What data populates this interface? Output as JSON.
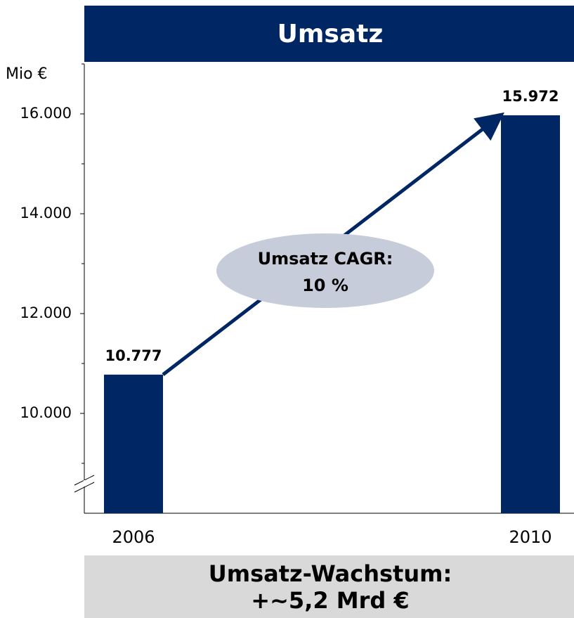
{
  "chart_data": {
    "type": "bar",
    "title": "Umsatz",
    "y_unit": "Mio €",
    "categories": [
      "2006",
      "2010"
    ],
    "values": [
      10777,
      15972
    ],
    "value_labels": [
      "10.777",
      "15.972"
    ],
    "color": "#002663",
    "ylim": [
      8000,
      17000
    ],
    "yticks": [
      {
        "value": 10000,
        "label": "10.000"
      },
      {
        "value": 12000,
        "label": "12.000"
      },
      {
        "value": 14000,
        "label": "14.000"
      },
      {
        "value": 16000,
        "label": "16.000"
      }
    ],
    "minor_yticks": [
      9000,
      11000,
      13000,
      15000,
      17000
    ],
    "annotation": [
      "Umsatz CAGR:",
      "10 %"
    ],
    "footer": [
      "Umsatz-Wachstum:",
      "+~5,2 Mrd €"
    ]
  }
}
